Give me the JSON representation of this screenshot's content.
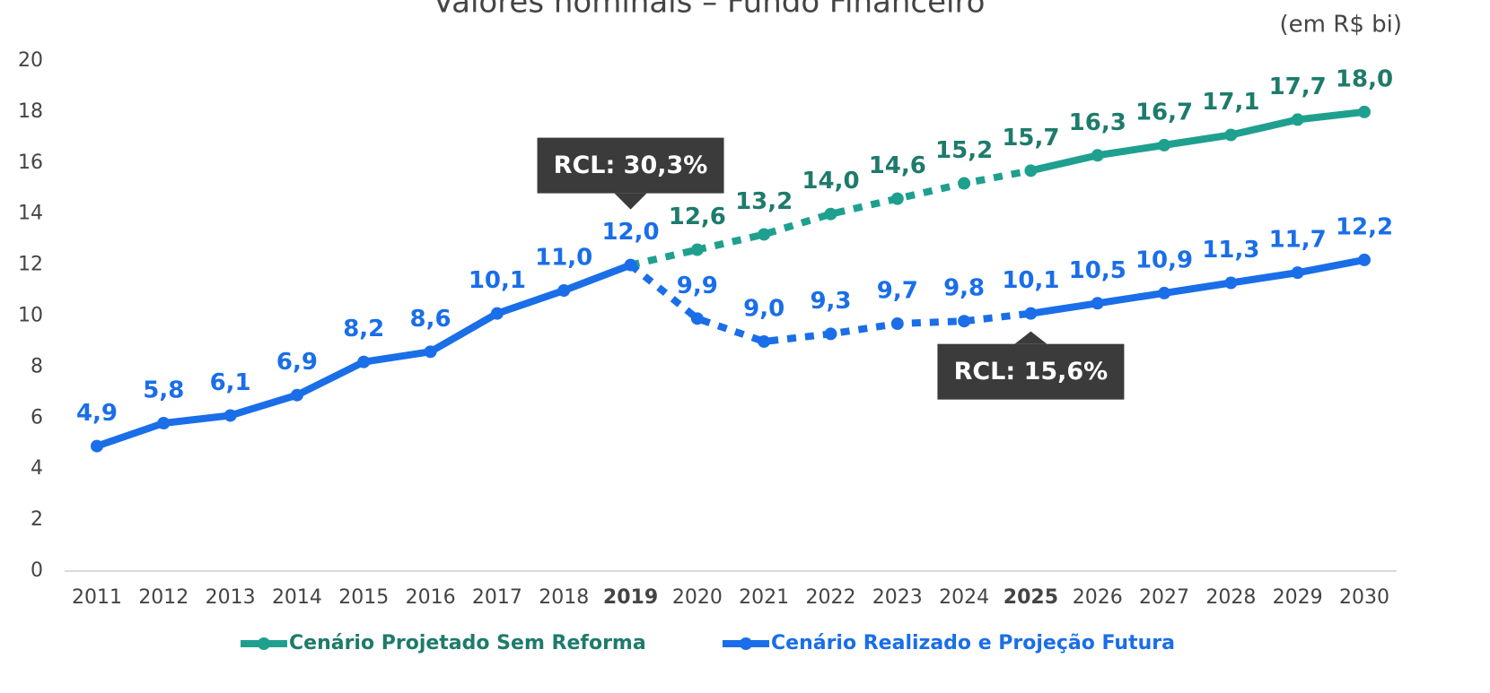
{
  "chart_data": {
    "type": "line",
    "title": "Valores nominais – Fundo Financeiro",
    "subtitle": "(em R$ bi)",
    "categories": [
      "2011",
      "2012",
      "2013",
      "2014",
      "2015",
      "2016",
      "2017",
      "2018",
      "2019",
      "2020",
      "2021",
      "2022",
      "2023",
      "2024",
      "2025",
      "2026",
      "2027",
      "2028",
      "2029",
      "2030"
    ],
    "bold_categories": [
      "2019",
      "2025"
    ],
    "series": [
      {
        "name": "Cenário Projetado Sem Reforma",
        "color": "#1fa08f",
        "label_color": "#1e7b6b",
        "values": [
          null,
          null,
          null,
          null,
          null,
          null,
          null,
          null,
          null,
          12.6,
          13.2,
          14.0,
          14.6,
          15.2,
          15.7,
          16.3,
          16.7,
          17.1,
          17.7,
          18.0
        ],
        "value_labels": [
          null,
          null,
          null,
          null,
          null,
          null,
          null,
          null,
          null,
          "12,6",
          "13,2",
          "14,0",
          "14,6",
          "15,2",
          "15,7",
          "16,3",
          "16,7",
          "17,1",
          "17,7",
          "18,0"
        ]
      },
      {
        "name": "Cenário Realizado e Projeção Futura",
        "color": "#1a6ee8",
        "label_color": "#1a6ee8",
        "values": [
          4.9,
          5.8,
          6.1,
          6.9,
          8.2,
          8.6,
          10.1,
          11.0,
          12.0,
          9.9,
          9.0,
          9.3,
          9.7,
          9.8,
          10.1,
          10.5,
          10.9,
          11.3,
          11.7,
          12.2
        ],
        "value_labels": [
          "4,9",
          "5,8",
          "6,1",
          "6,9",
          "8,2",
          "8,6",
          "10,1",
          "11,0",
          "12,0",
          "9,9",
          "9,0",
          "9,3",
          "9,7",
          "9,8",
          "10,1",
          "10,5",
          "10,9",
          "11,3",
          "11,7",
          "12,2"
        ]
      }
    ],
    "annotations": [
      {
        "text": "RCL: 30,3%",
        "category": "2019",
        "series": 1,
        "position": "above"
      },
      {
        "text": "RCL: 15,6%",
        "category": "2025",
        "series": 1,
        "position": "below"
      }
    ],
    "ylim": [
      0,
      20
    ],
    "yticks": [
      0,
      2,
      4,
      6,
      8,
      10,
      12,
      14,
      16,
      18,
      20
    ],
    "legend": "bottom"
  }
}
